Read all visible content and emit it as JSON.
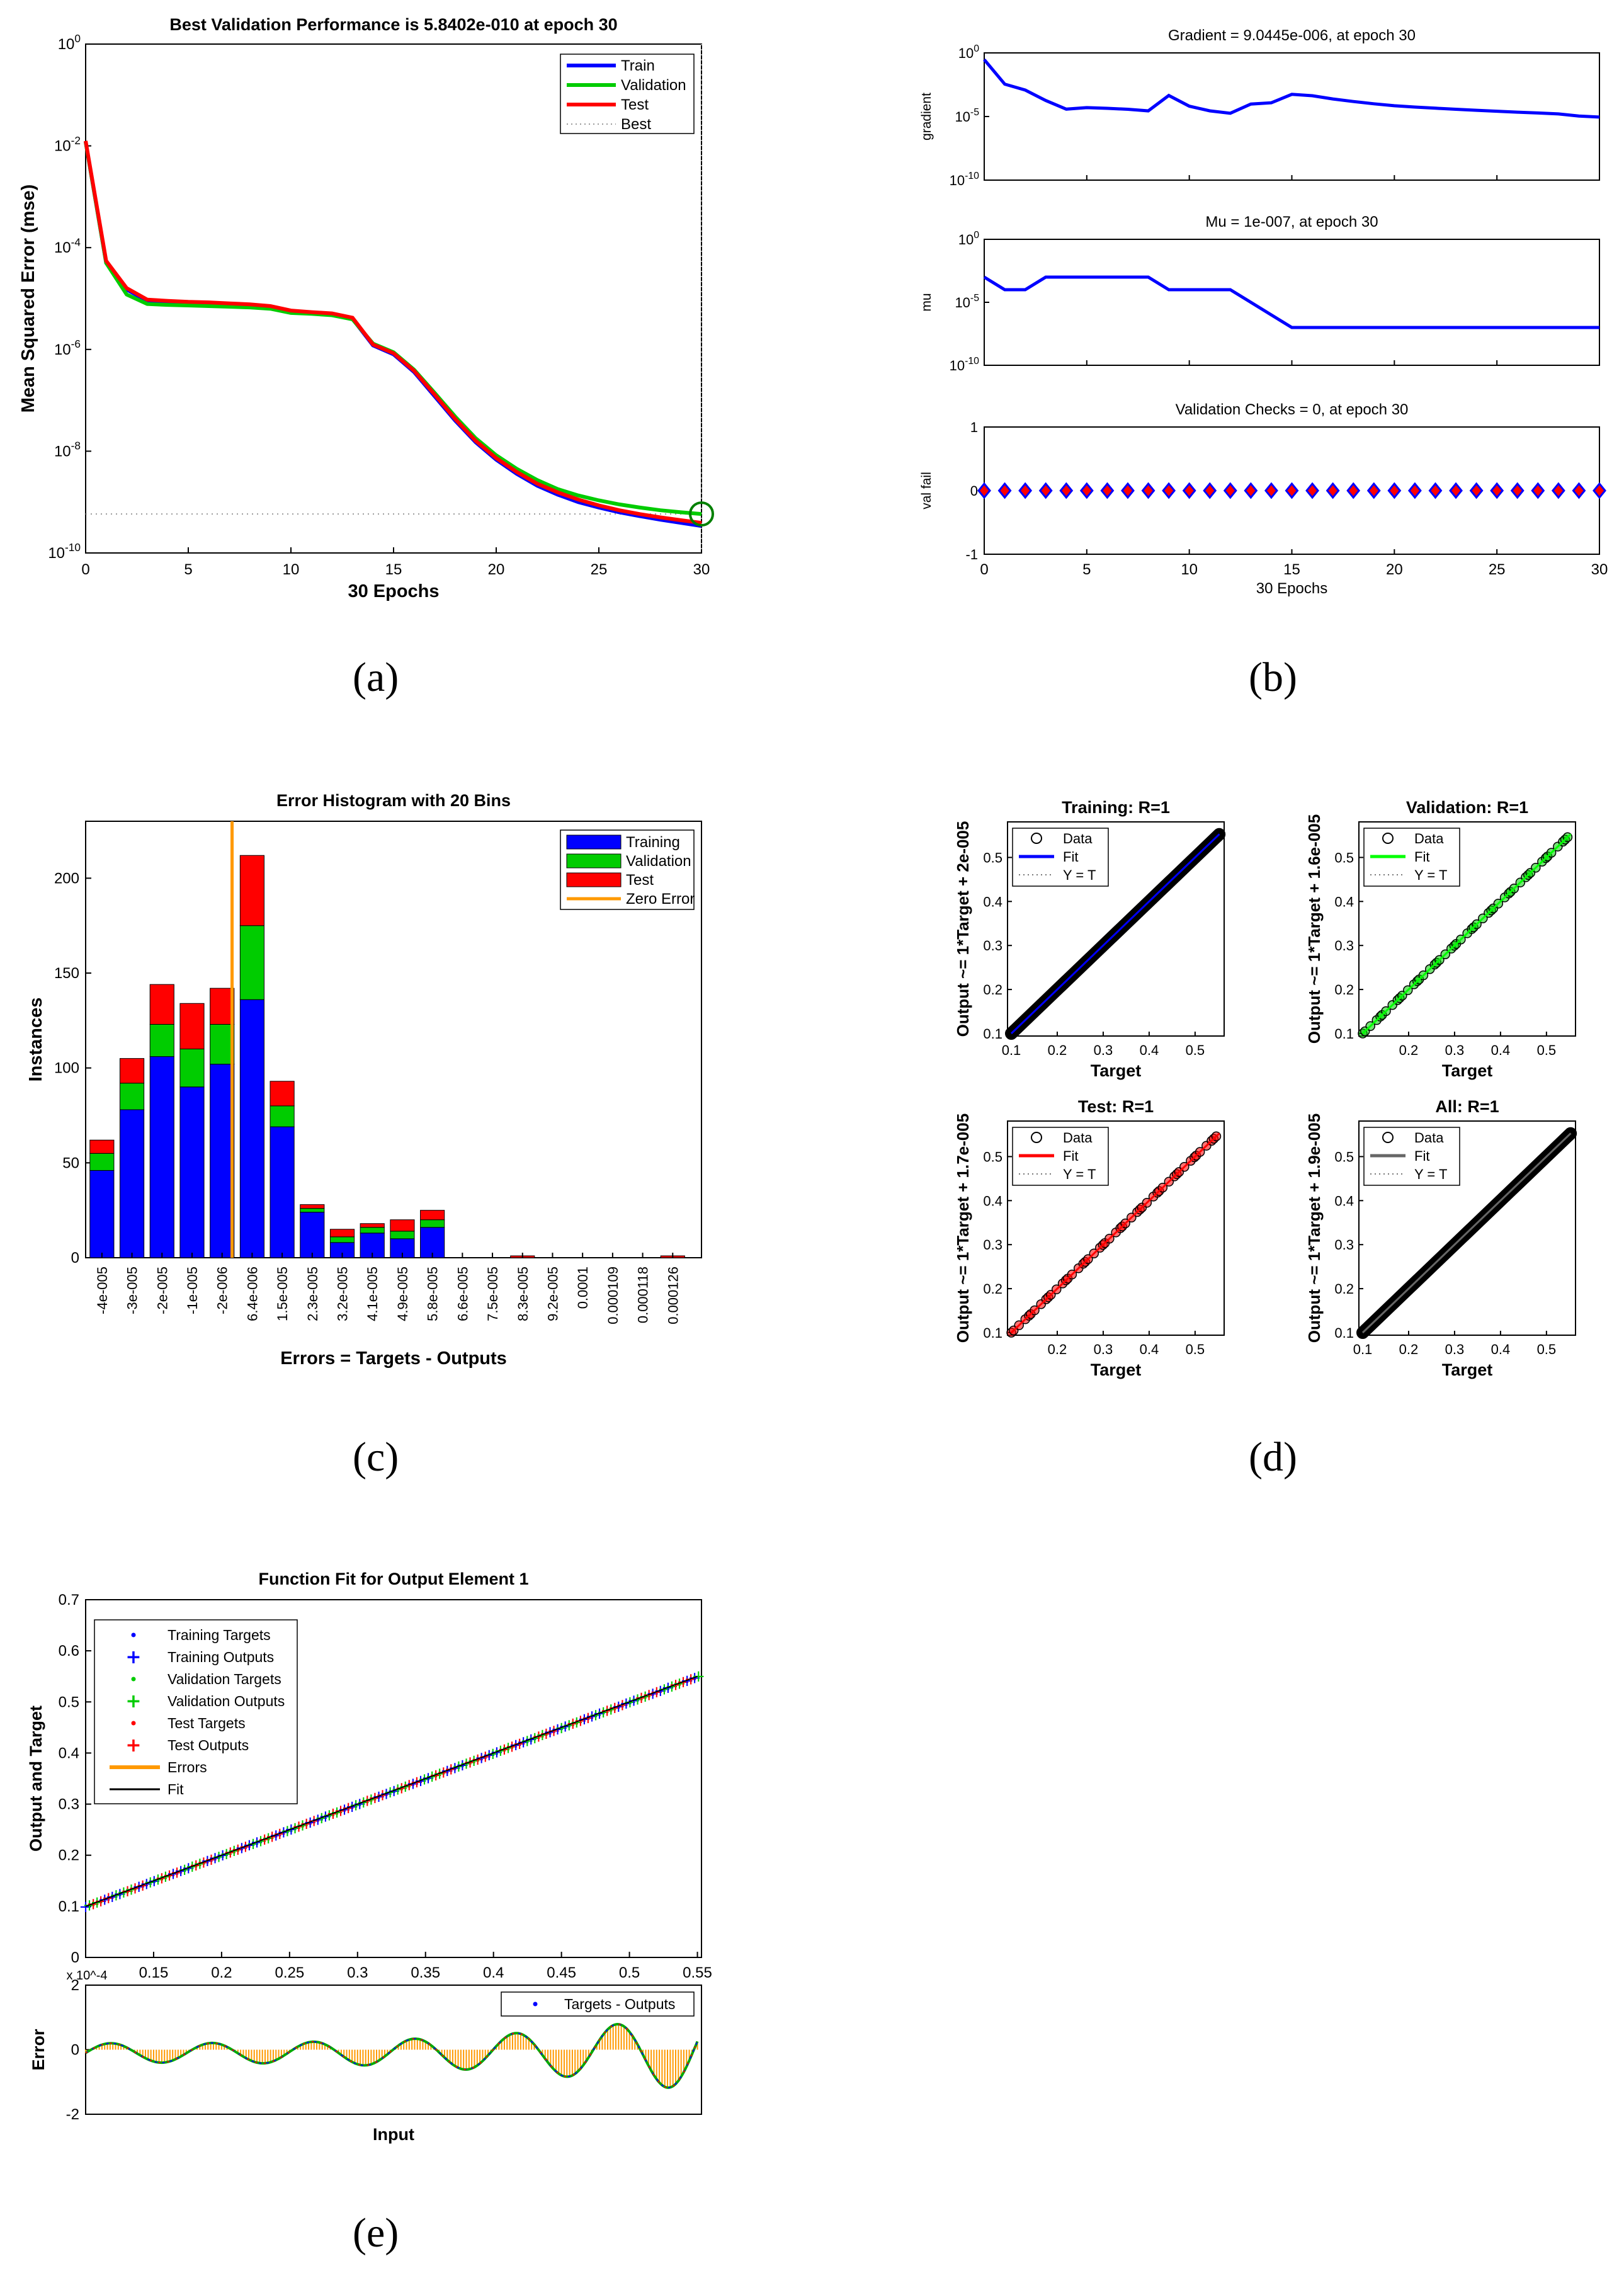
{
  "panels": {
    "a": {
      "caption": "(a)",
      "title": "Best Validation Performance is 5.8402e-010 at epoch 30",
      "xlabel": "30 Epochs",
      "ylabel": "Mean Squared Error  (mse)"
    },
    "b": {
      "caption": "(b)"
    },
    "c": {
      "caption": "(c)"
    },
    "d": {
      "caption": "(d)"
    },
    "e": {
      "caption": "(e)"
    }
  },
  "chart_data": [
    {
      "id": "a",
      "type": "line",
      "title": "Best Validation Performance is 5.8402e-010 at epoch 30",
      "xlabel": "30 Epochs",
      "ylabel": "Mean Squared Error  (mse)",
      "xlim": [
        0,
        30
      ],
      "ylim": [
        1e-10,
        1
      ],
      "yscale": "log",
      "xticks": [
        0,
        5,
        10,
        15,
        20,
        25,
        30
      ],
      "yticks": [
        "10^0",
        "10^-2",
        "10^-4",
        "10^-6",
        "10^-8",
        "10^-10"
      ],
      "legend_position": "top-right",
      "series": [
        {
          "name": "Train",
          "color": "#0000ff",
          "x": [
            0,
            1,
            2,
            3,
            4,
            5,
            6,
            7,
            8,
            9,
            10,
            11,
            12,
            13,
            14,
            15,
            16,
            17,
            18,
            19,
            20,
            21,
            22,
            23,
            24,
            25,
            26,
            27,
            28,
            29,
            30
          ],
          "y": [
            0.012,
            5e-05,
            1.5e-05,
            9e-06,
            8.5e-06,
            8.2e-06,
            8e-06,
            7.6e-06,
            7.3e-06,
            6.8e-06,
            5.5e-06,
            5.2e-06,
            4.9e-06,
            4e-06,
            1.2e-06,
            8e-07,
            3.6e-07,
            1.2e-07,
            4e-08,
            1.5e-08,
            6.8e-09,
            3.6e-09,
            2.1e-09,
            1.4e-09,
            1e-09,
            7.8e-10,
            6.3e-10,
            5.3e-10,
            4.5e-10,
            3.9e-10,
            3.4e-10
          ]
        },
        {
          "name": "Validation",
          "color": "#00cc00",
          "x": [
            0,
            1,
            2,
            3,
            4,
            5,
            6,
            7,
            8,
            9,
            10,
            11,
            12,
            13,
            14,
            15,
            16,
            17,
            18,
            19,
            20,
            21,
            22,
            23,
            24,
            25,
            26,
            27,
            28,
            29,
            30
          ],
          "y": [
            0.012,
            5e-05,
            1.2e-05,
            7.8e-06,
            7.5e-06,
            7.3e-06,
            7.1e-06,
            6.9e-06,
            6.7e-06,
            6.3e-06,
            5.2e-06,
            5e-06,
            4.7e-06,
            3.9e-06,
            1.3e-06,
            8.8e-07,
            4e-07,
            1.4e-07,
            4.8e-08,
            1.8e-08,
            8.3e-09,
            4.5e-09,
            2.7e-09,
            1.8e-09,
            1.35e-09,
            1.08e-09,
            9e-10,
            7.8e-10,
            6.9e-10,
            6.3e-10,
            5.84e-10
          ]
        },
        {
          "name": "Test",
          "color": "#ff0000",
          "x": [
            0,
            1,
            2,
            3,
            4,
            5,
            6,
            7,
            8,
            9,
            10,
            11,
            12,
            13,
            14,
            15,
            16,
            17,
            18,
            19,
            20,
            21,
            22,
            23,
            24,
            25,
            26,
            27,
            28,
            29,
            30
          ],
          "y": [
            0.0125,
            5.5e-05,
            1.6e-05,
            9.5e-06,
            9e-06,
            8.6e-06,
            8.4e-06,
            8e-06,
            7.7e-06,
            7.1e-06,
            5.8e-06,
            5.4e-06,
            5.1e-06,
            4.2e-06,
            1.25e-06,
            8.4e-07,
            3.8e-07,
            1.3e-07,
            4.3e-08,
            1.6e-08,
            7.3e-09,
            3.9e-09,
            2.3e-09,
            1.55e-09,
            1.12e-09,
            8.6e-10,
            6.9e-10,
            5.8e-10,
            5e-10,
            4.4e-10,
            3.9e-10
          ]
        },
        {
          "name": "Best",
          "style": "dotted",
          "color": "#999999",
          "best_x": 30,
          "best_y": 5.84e-10
        }
      ]
    },
    {
      "id": "b",
      "type": "line",
      "subplots": [
        {
          "title": "Gradient = 9.0445e-006, at epoch 30",
          "ylabel": "gradient",
          "yscale": "log",
          "ylim": [
            1e-10,
            1
          ],
          "yticks": [
            "10^0",
            "10^-5",
            "10^-10"
          ],
          "x": [
            0,
            1,
            2,
            3,
            4,
            5,
            6,
            7,
            8,
            9,
            10,
            11,
            12,
            13,
            14,
            15,
            16,
            17,
            18,
            19,
            20,
            21,
            22,
            23,
            24,
            25,
            26,
            27,
            28,
            29,
            30
          ],
          "y": [
            0.3,
            0.0035,
            0.0012,
            0.00018,
            3.8e-05,
            5e-05,
            4.4e-05,
            3.7e-05,
            2.8e-05,
            0.00045,
            6.5e-05,
            2.8e-05,
            1.8e-05,
            9.5e-05,
            0.00012,
            0.00055,
            0.00043,
            0.00024,
            0.00015,
            0.0001,
            7e-05,
            5.5e-05,
            4.5e-05,
            3.7e-05,
            3.1e-05,
            2.6e-05,
            2.2e-05,
            1.9e-05,
            1.6e-05,
            1.1e-05,
            9.0445e-06
          ]
        },
        {
          "title": "Mu = 1e-007, at epoch 30",
          "ylabel": "mu",
          "yscale": "log",
          "ylim": [
            1e-10,
            1
          ],
          "yticks": [
            "10^0",
            "10^-5",
            "10^-10"
          ],
          "x": [
            0,
            1,
            2,
            3,
            4,
            5,
            6,
            7,
            8,
            9,
            10,
            11,
            12,
            13,
            14,
            15,
            16,
            17,
            18,
            19,
            20,
            21,
            22,
            23,
            24,
            25,
            26,
            27,
            28,
            29,
            30
          ],
          "y": [
            0.001,
            0.0001,
            0.0001,
            0.001,
            0.001,
            0.001,
            0.001,
            0.001,
            0.001,
            0.0001,
            0.0001,
            0.0001,
            0.0001,
            1e-05,
            1e-06,
            1e-07,
            1e-07,
            1e-07,
            1e-07,
            1e-07,
            1e-07,
            1e-07,
            1e-07,
            1e-07,
            1e-07,
            1e-07,
            1e-07,
            1e-07,
            1e-07,
            1e-07,
            1e-07
          ]
        },
        {
          "title": "Validation Checks = 0, at epoch 30",
          "ylabel": "val fail",
          "ylim": [
            -1,
            1
          ],
          "yticks": [
            1,
            0,
            -1
          ],
          "xlabel": "30 Epochs",
          "marker": "diamond",
          "x": [
            0,
            1,
            2,
            3,
            4,
            5,
            6,
            7,
            8,
            9,
            10,
            11,
            12,
            13,
            14,
            15,
            16,
            17,
            18,
            19,
            20,
            21,
            22,
            23,
            24,
            25,
            26,
            27,
            28,
            29,
            30
          ],
          "y": [
            0,
            0,
            0,
            0,
            0,
            0,
            0,
            0,
            0,
            0,
            0,
            0,
            0,
            0,
            0,
            0,
            0,
            0,
            0,
            0,
            0,
            0,
            0,
            0,
            0,
            0,
            0,
            0,
            0,
            0,
            0
          ]
        }
      ],
      "xlim": [
        0,
        30
      ],
      "xticks": [
        0,
        5,
        10,
        15,
        20,
        25,
        30
      ]
    },
    {
      "id": "c",
      "type": "bar",
      "title": "Error Histogram with 20 Bins",
      "xlabel": "Errors = Targets - Outputs",
      "ylabel": "Instances",
      "ylim": [
        0,
        230
      ],
      "yticks": [
        0,
        50,
        100,
        150,
        200
      ],
      "legend_position": "top-right",
      "categories": [
        "-4e-005",
        "-3e-005",
        "-2e-005",
        "-1e-005",
        "-2e-006",
        "6.4e-006",
        "1.5e-005",
        "2.3e-005",
        "3.2e-005",
        "4.1e-005",
        "4.9e-005",
        "5.8e-005",
        "6.6e-005",
        "7.5e-005",
        "8.3e-005",
        "9.2e-005",
        "0.0001",
        "0.000109",
        "0.000118",
        "0.000126"
      ],
      "series": [
        {
          "name": "Training",
          "color": "#0000ff",
          "values": [
            46,
            78,
            106,
            90,
            102,
            136,
            69,
            24,
            8,
            13,
            10,
            16,
            0,
            0,
            0,
            0,
            0,
            0,
            0,
            0
          ]
        },
        {
          "name": "Validation",
          "color": "#00cc00",
          "values": [
            9,
            14,
            17,
            20,
            21,
            39,
            11,
            2,
            3,
            3,
            4,
            4,
            0,
            0,
            0,
            0,
            0,
            0,
            0,
            0
          ]
        },
        {
          "name": "Test",
          "color": "#ff0000",
          "values": [
            7,
            13,
            21,
            24,
            19,
            37,
            13,
            2,
            4,
            2,
            6,
            5,
            0,
            0,
            1,
            0,
            0,
            0,
            0,
            1
          ]
        }
      ],
      "zero_error": {
        "name": "Zero Error",
        "color": "#ff9900",
        "position_between_bins": [
          4,
          5
        ]
      }
    },
    {
      "id": "d",
      "type": "scatter",
      "subplots": [
        {
          "title": "Training: R=1",
          "ylabel": "Output ~= 1*Target + 2e-005",
          "xlabel": "Target",
          "fit_color": "#0000ff",
          "marker_color": "#000000",
          "xlim": [
            0.1,
            0.55
          ],
          "ylim": [
            0.1,
            0.55
          ],
          "legend": [
            "Data",
            "Fit",
            "Y = T"
          ],
          "xticks": [
            0.1,
            0.2,
            0.3,
            0.4,
            0.5
          ],
          "yticks": [
            0.1,
            0.2,
            0.3,
            0.4,
            0.5
          ],
          "fit": {
            "slope": 1,
            "intercept": 2e-05
          }
        },
        {
          "title": "Validation: R=1",
          "ylabel": "Output ~= 1*Target + 1.6e-005",
          "xlabel": "Target",
          "fit_color": "#00ff00",
          "marker_color": "#00cc00",
          "xlim": [
            0.1,
            0.55
          ],
          "ylim": [
            0.1,
            0.55
          ],
          "legend": [
            "Data",
            "Fit",
            "Y = T"
          ],
          "xticks": [
            0.2,
            0.3,
            0.4,
            0.5
          ],
          "yticks": [
            0.1,
            0.2,
            0.3,
            0.4,
            0.5
          ],
          "fit": {
            "slope": 1,
            "intercept": 1.6e-05
          }
        },
        {
          "title": "Test: R=1",
          "ylabel": "Output ~= 1*Target + 1.7e-005",
          "xlabel": "Target",
          "fit_color": "#ff0000",
          "marker_color": "#ff0000",
          "xlim": [
            0.1,
            0.55
          ],
          "ylim": [
            0.1,
            0.55
          ],
          "legend": [
            "Data",
            "Fit",
            "Y = T"
          ],
          "xticks": [
            0.2,
            0.3,
            0.4,
            0.5
          ],
          "yticks": [
            0.1,
            0.2,
            0.3,
            0.4,
            0.5
          ],
          "fit": {
            "slope": 1,
            "intercept": 1.7e-05
          }
        },
        {
          "title": "All: R=1",
          "ylabel": "Output ~= 1*Target + 1.9e-005",
          "xlabel": "Target",
          "fit_color": "#666666",
          "marker_color": "#000000",
          "xlim": [
            0.1,
            0.55
          ],
          "ylim": [
            0.1,
            0.55
          ],
          "legend": [
            "Data",
            "Fit",
            "Y = T"
          ],
          "xticks": [
            0.1,
            0.2,
            0.3,
            0.4,
            0.5
          ],
          "yticks": [
            0.1,
            0.2,
            0.3,
            0.4,
            0.5
          ],
          "fit": {
            "slope": 1,
            "intercept": 1.9e-05
          }
        }
      ]
    },
    {
      "id": "e",
      "type": "line",
      "title": "Function Fit for Output Element 1",
      "xlabel": "Input",
      "ylabel": "Output and Target",
      "xlim": [
        0.1,
        0.55
      ],
      "ylim": [
        0,
        0.7
      ],
      "xticks": [
        "0.15",
        "0.2",
        "0.25",
        "0.3",
        "0.35",
        "0.4",
        "0.45",
        "0.5",
        "0.55"
      ],
      "yticks": [
        "0",
        "0.1",
        "0.2",
        "0.3",
        "0.4",
        "0.5",
        "0.6",
        "0.7"
      ],
      "legend_position": "top-left",
      "legend": [
        "Training Targets",
        "Training Outputs",
        "Validation Targets",
        "Validation Outputs",
        "Test Targets",
        "Test Outputs",
        "Errors",
        "Fit"
      ],
      "fit": {
        "from": [
          0.1,
          0.1
        ],
        "to": [
          0.55,
          0.55
        ]
      },
      "error_subplot": {
        "ylabel": "Error",
        "ylim": [
          -2,
          2
        ],
        "yticks": [
          "2",
          "0",
          "-2"
        ],
        "exponent_label": "x 10^-4",
        "legend": [
          "Targets - Outputs"
        ],
        "error_color": "#ff9900"
      }
    }
  ]
}
